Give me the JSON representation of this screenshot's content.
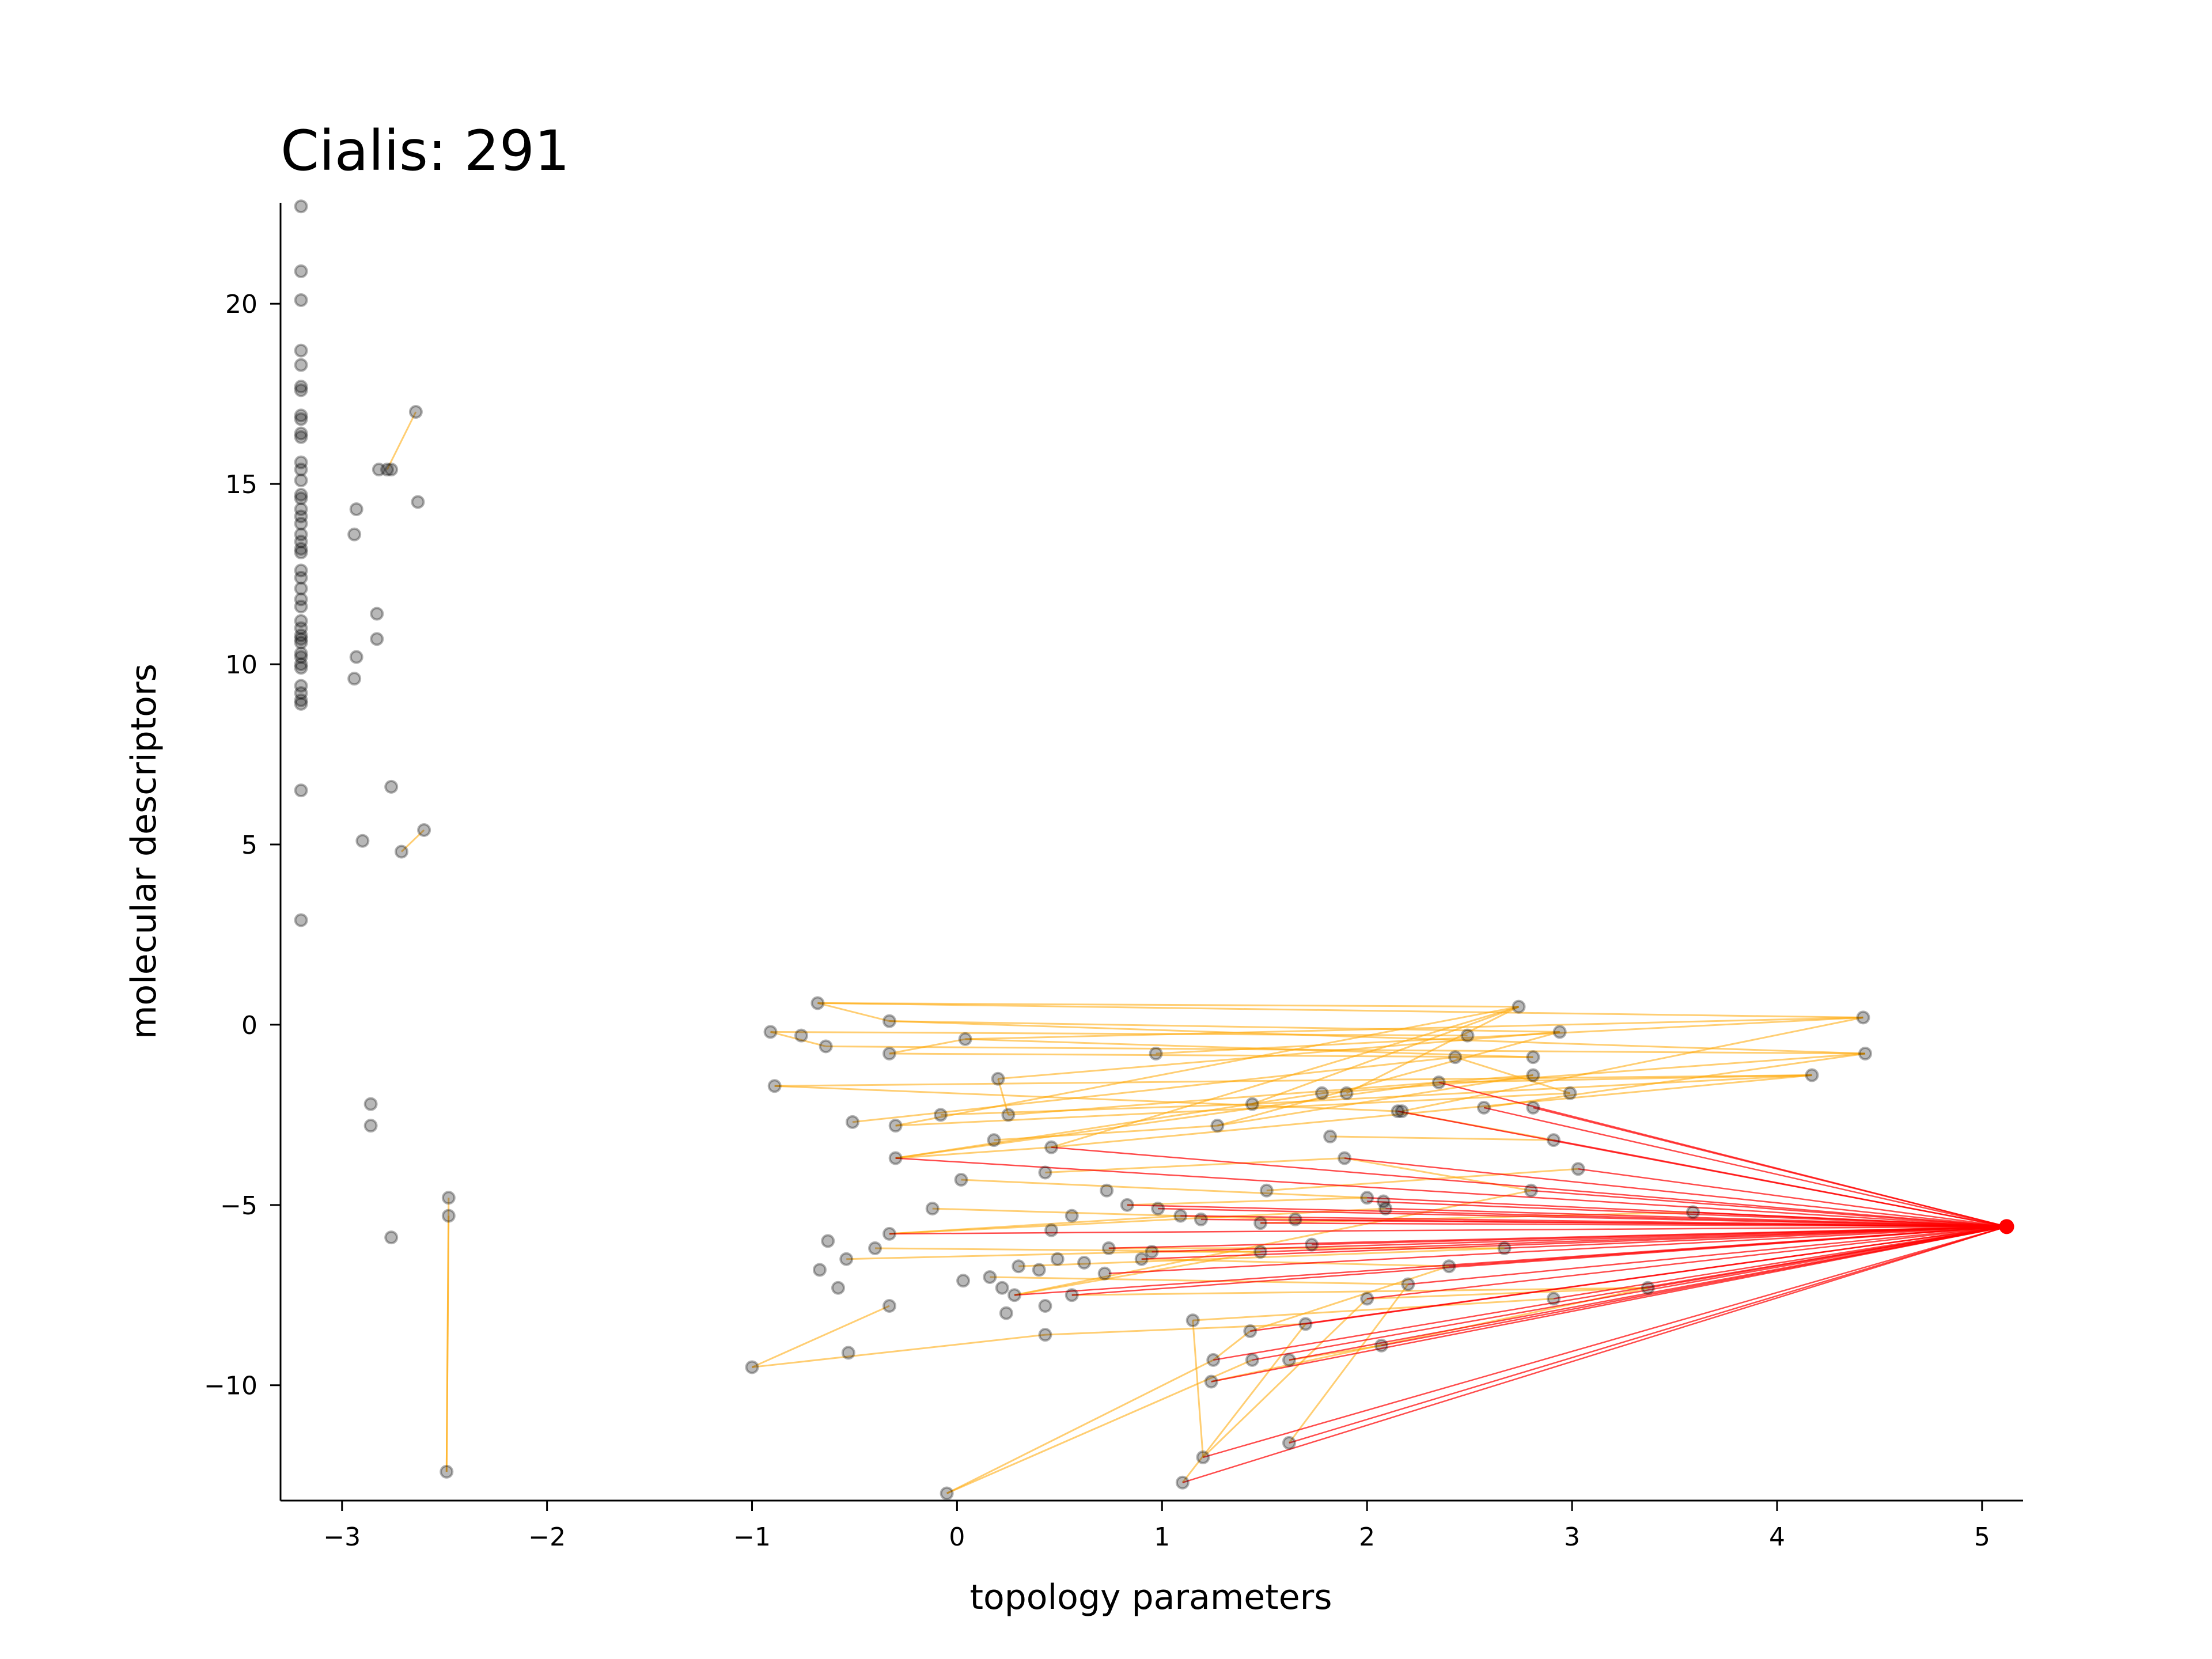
{
  "chart_data": {
    "type": "scatter",
    "title": "Cialis: 291",
    "xlabel": "topology parameters",
    "ylabel": "molecular descriptors",
    "xlim": [
      -3.3,
      5.2
    ],
    "ylim": [
      -13.2,
      22.8
    ],
    "xticks": [
      -3,
      -2,
      -1,
      0,
      1,
      2,
      3,
      4,
      5
    ],
    "yticks": [
      -10,
      -5,
      0,
      5,
      10,
      15,
      20
    ],
    "xtick_labels": [
      "−3",
      "−2",
      "−1",
      "0",
      "1",
      "2",
      "3",
      "4",
      "5"
    ],
    "ytick_labels": [
      "−10",
      "−5",
      "0",
      "5",
      "10",
      "15",
      "20"
    ],
    "grid": false,
    "colors": {
      "point": "#000000",
      "edge": "#ffa500",
      "highlight": "#ff0000"
    },
    "highlight_point": {
      "x": 5.12,
      "y": -5.6
    },
    "points": [
      {
        "x": -3.2,
        "y": 22.7
      },
      {
        "x": -3.2,
        "y": 20.9
      },
      {
        "x": -3.2,
        "y": 20.1
      },
      {
        "x": -3.2,
        "y": 18.7
      },
      {
        "x": -3.2,
        "y": 18.3
      },
      {
        "x": -3.2,
        "y": 17.7
      },
      {
        "x": -3.2,
        "y": 17.6
      },
      {
        "x": -3.2,
        "y": 16.9
      },
      {
        "x": -3.2,
        "y": 16.8
      },
      {
        "x": -3.2,
        "y": 16.4
      },
      {
        "x": -3.2,
        "y": 16.3
      },
      {
        "x": -3.2,
        "y": 15.6
      },
      {
        "x": -3.2,
        "y": 15.4
      },
      {
        "x": -3.2,
        "y": 15.1
      },
      {
        "x": -3.2,
        "y": 14.7
      },
      {
        "x": -3.2,
        "y": 14.6
      },
      {
        "x": -3.2,
        "y": 14.3
      },
      {
        "x": -3.2,
        "y": 14.1
      },
      {
        "x": -3.2,
        "y": 13.9
      },
      {
        "x": -3.2,
        "y": 13.6
      },
      {
        "x": -3.2,
        "y": 13.4
      },
      {
        "x": -3.2,
        "y": 13.2
      },
      {
        "x": -3.2,
        "y": 13.1
      },
      {
        "x": -3.2,
        "y": 12.6
      },
      {
        "x": -3.2,
        "y": 12.4
      },
      {
        "x": -3.2,
        "y": 12.1
      },
      {
        "x": -3.2,
        "y": 11.8
      },
      {
        "x": -3.2,
        "y": 11.6
      },
      {
        "x": -3.2,
        "y": 11.2
      },
      {
        "x": -3.2,
        "y": 11.0
      },
      {
        "x": -3.2,
        "y": 10.8
      },
      {
        "x": -3.2,
        "y": 10.7
      },
      {
        "x": -3.2,
        "y": 10.6
      },
      {
        "x": -3.2,
        "y": 10.3
      },
      {
        "x": -3.2,
        "y": 10.2
      },
      {
        "x": -3.2,
        "y": 10.0
      },
      {
        "x": -3.2,
        "y": 9.9
      },
      {
        "x": -3.2,
        "y": 9.4
      },
      {
        "x": -3.2,
        "y": 9.2
      },
      {
        "x": -3.2,
        "y": 9.0
      },
      {
        "x": -3.2,
        "y": 8.9
      },
      {
        "x": -3.2,
        "y": 6.5
      },
      {
        "x": -3.2,
        "y": 2.9
      },
      {
        "x": -2.93,
        "y": 14.3
      },
      {
        "x": -2.94,
        "y": 13.6
      },
      {
        "x": -2.93,
        "y": 10.2
      },
      {
        "x": -2.94,
        "y": 9.6
      },
      {
        "x": -2.83,
        "y": 11.4
      },
      {
        "x": -2.83,
        "y": 10.7
      },
      {
        "x": -2.76,
        "y": 15.4
      },
      {
        "x": -2.78,
        "y": 15.4
      },
      {
        "x": -2.82,
        "y": 15.4
      },
      {
        "x": -2.64,
        "y": 17.0
      },
      {
        "x": -2.63,
        "y": 14.5
      },
      {
        "x": -2.76,
        "y": 6.6
      },
      {
        "x": -2.9,
        "y": 5.1
      },
      {
        "x": -2.6,
        "y": 5.4
      },
      {
        "x": -2.71,
        "y": 4.8
      },
      {
        "x": -2.86,
        "y": -2.2
      },
      {
        "x": -2.86,
        "y": -2.8
      },
      {
        "x": -2.76,
        "y": -5.9
      },
      {
        "x": -2.48,
        "y": -4.8
      },
      {
        "x": -2.48,
        "y": -5.3
      },
      {
        "x": -2.49,
        "y": -12.4
      },
      {
        "x": -0.68,
        "y": 0.6
      },
      {
        "x": -0.91,
        "y": -0.2
      },
      {
        "x": -0.76,
        "y": -0.3
      },
      {
        "x": -0.33,
        "y": 0.1
      },
      {
        "x": -0.64,
        "y": -0.6
      },
      {
        "x": -0.33,
        "y": -0.8
      },
      {
        "x": 0.04,
        "y": -0.4
      },
      {
        "x": -0.89,
        "y": -1.7
      },
      {
        "x": 0.2,
        "y": -1.5
      },
      {
        "x": -0.51,
        "y": -2.7
      },
      {
        "x": -0.3,
        "y": -2.8
      },
      {
        "x": -0.08,
        "y": -2.5
      },
      {
        "x": 0.25,
        "y": -2.5
      },
      {
        "x": 0.18,
        "y": -3.2
      },
      {
        "x": 0.46,
        "y": -3.4
      },
      {
        "x": -0.3,
        "y": -3.7
      },
      {
        "x": 0.02,
        "y": -4.3
      },
      {
        "x": 0.43,
        "y": -4.1
      },
      {
        "x": -0.12,
        "y": -5.1
      },
      {
        "x": -0.33,
        "y": -5.8
      },
      {
        "x": -0.63,
        "y": -6.0
      },
      {
        "x": -0.54,
        "y": -6.5
      },
      {
        "x": -0.67,
        "y": -6.8
      },
      {
        "x": -0.4,
        "y": -6.2
      },
      {
        "x": -0.58,
        "y": -7.3
      },
      {
        "x": -0.33,
        "y": -7.8
      },
      {
        "x": -0.53,
        "y": -9.1
      },
      {
        "x": -1.0,
        "y": -9.5
      },
      {
        "x": -0.05,
        "y": -13.0
      },
      {
        "x": 0.03,
        "y": -7.1
      },
      {
        "x": 0.16,
        "y": -7.0
      },
      {
        "x": 0.22,
        "y": -7.3
      },
      {
        "x": 0.28,
        "y": -7.5
      },
      {
        "x": 0.43,
        "y": -7.8
      },
      {
        "x": 0.43,
        "y": -8.6
      },
      {
        "x": 0.24,
        "y": -8.0
      },
      {
        "x": 0.3,
        "y": -6.7
      },
      {
        "x": 0.4,
        "y": -6.8
      },
      {
        "x": 0.49,
        "y": -6.5
      },
      {
        "x": 0.62,
        "y": -6.6
      },
      {
        "x": 0.72,
        "y": -6.9
      },
      {
        "x": 0.74,
        "y": -6.2
      },
      {
        "x": 0.56,
        "y": -7.5
      },
      {
        "x": 0.46,
        "y": -5.7
      },
      {
        "x": 0.56,
        "y": -5.3
      },
      {
        "x": 0.73,
        "y": -4.6
      },
      {
        "x": 0.83,
        "y": -5.0
      },
      {
        "x": 0.98,
        "y": -5.1
      },
      {
        "x": 1.09,
        "y": -5.3
      },
      {
        "x": 1.19,
        "y": -5.4
      },
      {
        "x": 0.95,
        "y": -6.3
      },
      {
        "x": 0.9,
        "y": -6.5
      },
      {
        "x": 0.97,
        "y": -0.8
      },
      {
        "x": 1.44,
        "y": -2.2
      },
      {
        "x": 1.27,
        "y": -2.8
      },
      {
        "x": 1.51,
        "y": -4.6
      },
      {
        "x": 1.48,
        "y": -5.5
      },
      {
        "x": 1.48,
        "y": -6.3
      },
      {
        "x": 1.65,
        "y": -5.4
      },
      {
        "x": 1.73,
        "y": -6.1
      },
      {
        "x": 1.78,
        "y": -1.9
      },
      {
        "x": 1.82,
        "y": -3.1
      },
      {
        "x": 1.89,
        "y": -3.7
      },
      {
        "x": 1.9,
        "y": -1.9
      },
      {
        "x": 2.0,
        "y": -4.8
      },
      {
        "x": 2.08,
        "y": -4.9
      },
      {
        "x": 2.15,
        "y": -2.4
      },
      {
        "x": 2.17,
        "y": -2.4
      },
      {
        "x": 2.35,
        "y": -1.6
      },
      {
        "x": 2.43,
        "y": -0.9
      },
      {
        "x": 2.49,
        "y": -0.3
      },
      {
        "x": 2.74,
        "y": 0.5
      },
      {
        "x": 2.94,
        "y": -0.2
      },
      {
        "x": 2.81,
        "y": -0.9
      },
      {
        "x": 2.81,
        "y": -1.4
      },
      {
        "x": 2.99,
        "y": -1.9
      },
      {
        "x": 2.57,
        "y": -2.3
      },
      {
        "x": 2.81,
        "y": -2.3
      },
      {
        "x": 2.91,
        "y": -3.2
      },
      {
        "x": 3.03,
        "y": -4.0
      },
      {
        "x": 2.8,
        "y": -4.6
      },
      {
        "x": 2.67,
        "y": -6.2
      },
      {
        "x": 2.4,
        "y": -6.7
      },
      {
        "x": 2.2,
        "y": -7.2
      },
      {
        "x": 2.09,
        "y": -5.1
      },
      {
        "x": 2.0,
        "y": -7.6
      },
      {
        "x": 2.07,
        "y": -8.9
      },
      {
        "x": 1.7,
        "y": -8.3
      },
      {
        "x": 1.43,
        "y": -8.5
      },
      {
        "x": 1.44,
        "y": -9.3
      },
      {
        "x": 1.62,
        "y": -9.3
      },
      {
        "x": 1.25,
        "y": -9.3
      },
      {
        "x": 1.24,
        "y": -9.9
      },
      {
        "x": 1.2,
        "y": -12.0
      },
      {
        "x": 1.1,
        "y": -12.7
      },
      {
        "x": 1.62,
        "y": -11.6
      },
      {
        "x": 1.15,
        "y": -8.2
      },
      {
        "x": 3.37,
        "y": -7.3
      },
      {
        "x": 2.91,
        "y": -7.6
      },
      {
        "x": 3.59,
        "y": -5.2
      },
      {
        "x": 4.17,
        "y": -1.4
      },
      {
        "x": 4.42,
        "y": 0.2
      },
      {
        "x": 4.43,
        "y": -0.8
      }
    ],
    "edges": [
      [
        -2.6,
        5.4,
        -2.71,
        4.8
      ],
      [
        -2.64,
        17.0,
        -2.78,
        15.4
      ],
      [
        -2.48,
        -4.8,
        -2.49,
        -12.4
      ],
      [
        -2.48,
        -5.3,
        -2.49,
        -12.4
      ],
      [
        -0.68,
        0.6,
        2.74,
        0.5
      ],
      [
        -0.68,
        0.6,
        4.42,
        0.2
      ],
      [
        -0.91,
        -0.2,
        2.49,
        -0.3
      ],
      [
        -0.33,
        0.1,
        4.43,
        -0.8
      ],
      [
        -0.33,
        0.1,
        2.94,
        -0.2
      ],
      [
        0.04,
        -0.4,
        4.42,
        0.2
      ],
      [
        0.04,
        -0.4,
        2.81,
        -0.9
      ],
      [
        -0.89,
        -1.7,
        2.15,
        -2.4
      ],
      [
        -0.89,
        -1.7,
        4.17,
        -1.4
      ],
      [
        -0.51,
        -2.7,
        2.43,
        -0.9
      ],
      [
        -0.3,
        -2.8,
        2.74,
        0.5
      ],
      [
        -0.3,
        -2.8,
        2.99,
        -1.9
      ],
      [
        0.25,
        -2.5,
        2.81,
        -1.4
      ],
      [
        0.46,
        -3.4,
        2.74,
        0.5
      ],
      [
        0.46,
        -3.4,
        4.17,
        -1.4
      ],
      [
        -0.3,
        -3.7,
        2.35,
        -1.6
      ],
      [
        -0.3,
        -3.7,
        1.78,
        -1.9
      ],
      [
        0.2,
        -1.5,
        2.94,
        -0.2
      ],
      [
        -0.64,
        -0.6,
        4.43,
        -0.8
      ],
      [
        -0.33,
        -0.8,
        2.81,
        -0.9
      ],
      [
        0.97,
        -0.8,
        4.42,
        0.2
      ],
      [
        1.44,
        -2.2,
        4.17,
        -1.4
      ],
      [
        1.27,
        -2.8,
        2.94,
        -0.2
      ],
      [
        1.78,
        -1.9,
        4.43,
        -0.8
      ],
      [
        1.9,
        -1.9,
        2.74,
        0.5
      ],
      [
        2.17,
        -2.4,
        4.42,
        0.2
      ],
      [
        2.35,
        -1.6,
        4.17,
        -1.4
      ],
      [
        2.57,
        -2.3,
        4.43,
        -0.8
      ],
      [
        -1.0,
        -9.5,
        -0.33,
        -7.8
      ],
      [
        -1.0,
        -9.5,
        0.43,
        -8.6
      ],
      [
        -0.05,
        -13.0,
        1.25,
        -9.3
      ],
      [
        -0.05,
        -13.0,
        1.44,
        -9.3
      ],
      [
        -0.33,
        -5.8,
        1.09,
        -5.3
      ],
      [
        -0.33,
        -5.8,
        2.09,
        -5.1
      ],
      [
        0.28,
        -7.5,
        1.48,
        -6.3
      ],
      [
        0.28,
        -7.5,
        2.8,
        -4.6
      ],
      [
        0.43,
        -8.6,
        1.7,
        -8.3
      ],
      [
        0.56,
        -7.5,
        3.37,
        -7.3
      ],
      [
        0.74,
        -6.2,
        2.67,
        -6.2
      ],
      [
        0.83,
        -5.0,
        2.0,
        -4.8
      ],
      [
        0.9,
        -6.5,
        2.4,
        -6.7
      ],
      [
        1.15,
        -8.2,
        2.91,
        -7.6
      ],
      [
        1.2,
        -12.0,
        2.0,
        -7.6
      ],
      [
        1.1,
        -12.7,
        1.7,
        -8.3
      ],
      [
        1.62,
        -11.6,
        2.2,
        -7.2
      ],
      [
        1.24,
        -9.9,
        3.37,
        -7.3
      ],
      [
        1.43,
        -8.5,
        2.4,
        -6.7
      ],
      [
        1.48,
        -5.5,
        3.59,
        -5.2
      ],
      [
        1.51,
        -4.6,
        3.03,
        -4.0
      ],
      [
        2.0,
        -7.6,
        3.37,
        -7.3
      ],
      [
        1.82,
        -3.1,
        2.91,
        -3.2
      ],
      [
        1.89,
        -3.7,
        2.8,
        -4.6
      ],
      [
        0.02,
        -4.3,
        2.0,
        -4.8
      ],
      [
        0.43,
        -4.1,
        1.89,
        -3.7
      ],
      [
        -0.12,
        -5.1,
        1.65,
        -5.4
      ],
      [
        -0.4,
        -6.2,
        1.48,
        -6.3
      ],
      [
        -0.54,
        -6.5,
        0.95,
        -6.3
      ],
      [
        0.16,
        -7.0,
        2.2,
        -7.2
      ],
      [
        0.3,
        -6.7,
        2.67,
        -6.2
      ],
      [
        -0.3,
        -3.7,
        0.46,
        -3.4
      ],
      [
        0.18,
        -3.2,
        1.27,
        -2.8
      ],
      [
        -0.08,
        -2.5,
        1.44,
        -2.2
      ],
      [
        1.44,
        -2.2,
        2.74,
        0.5
      ],
      [
        1.27,
        -2.8,
        2.81,
        -1.4
      ],
      [
        2.15,
        -2.4,
        2.91,
        -3.2
      ],
      [
        2.43,
        -0.9,
        2.99,
        -1.9
      ],
      [
        0.04,
        -0.4,
        -0.33,
        -0.8
      ],
      [
        -0.68,
        0.6,
        -0.33,
        0.1
      ],
      [
        0.2,
        -1.5,
        0.25,
        -2.5
      ],
      [
        -0.91,
        -0.2,
        -0.64,
        -0.6
      ],
      [
        1.2,
        -12.0,
        1.15,
        -8.2
      ],
      [
        1.25,
        -9.3,
        1.43,
        -8.5
      ],
      [
        1.62,
        -9.3,
        2.07,
        -8.9
      ],
      [
        0.95,
        -6.3,
        1.48,
        -6.3
      ]
    ],
    "highlight_targets": [
      [
        -0.33,
        -5.8
      ],
      [
        0.46,
        -3.4
      ],
      [
        -0.3,
        -3.7
      ],
      [
        0.83,
        -5.0
      ],
      [
        0.98,
        -5.1
      ],
      [
        1.09,
        -5.3
      ],
      [
        1.19,
        -5.4
      ],
      [
        1.48,
        -5.5
      ],
      [
        1.65,
        -5.4
      ],
      [
        1.73,
        -6.1
      ],
      [
        2.0,
        -4.8
      ],
      [
        2.09,
        -5.1
      ],
      [
        2.15,
        -2.4
      ],
      [
        2.35,
        -1.6
      ],
      [
        2.57,
        -2.3
      ],
      [
        2.81,
        -2.3
      ],
      [
        2.91,
        -3.2
      ],
      [
        3.03,
        -4.0
      ],
      [
        2.8,
        -4.6
      ],
      [
        2.67,
        -6.2
      ],
      [
        2.4,
        -6.7
      ],
      [
        2.2,
        -7.2
      ],
      [
        2.0,
        -7.6
      ],
      [
        2.07,
        -8.9
      ],
      [
        1.7,
        -8.3
      ],
      [
        1.43,
        -8.5
      ],
      [
        1.44,
        -9.3
      ],
      [
        1.24,
        -9.9
      ],
      [
        1.2,
        -12.0
      ],
      [
        1.1,
        -12.7
      ],
      [
        1.62,
        -11.6
      ],
      [
        3.37,
        -7.3
      ],
      [
        2.91,
        -7.6
      ],
      [
        3.59,
        -5.2
      ],
      [
        0.56,
        -7.5
      ],
      [
        0.74,
        -6.2
      ],
      [
        0.95,
        -6.3
      ],
      [
        1.48,
        -6.3
      ],
      [
        0.28,
        -7.5
      ],
      [
        0.74,
        -6.9
      ],
      [
        1.25,
        -9.3
      ],
      [
        1.62,
        -9.3
      ],
      [
        0.9,
        -6.5
      ],
      [
        2.0,
        -4.9
      ],
      [
        1.89,
        -3.7
      ]
    ]
  }
}
